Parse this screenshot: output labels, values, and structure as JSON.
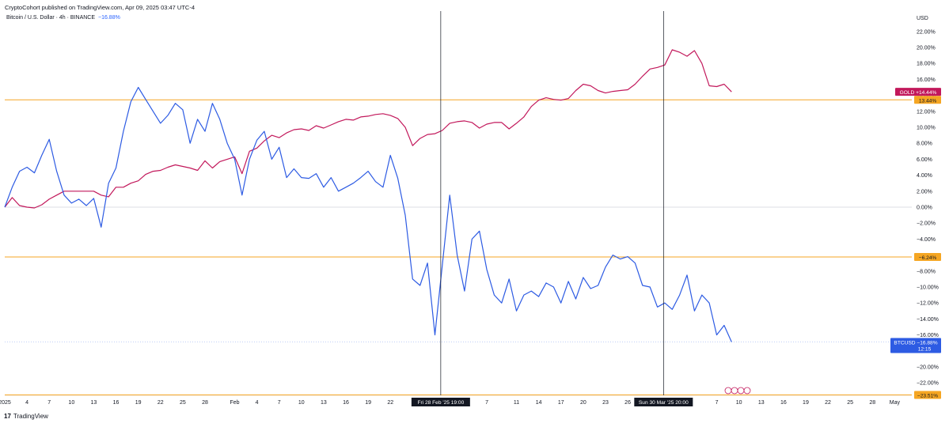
{
  "header": {
    "published": "CryptoCohort published on TradingView.com, Apr 09, 2025 03:47 UTC-4",
    "symbol": "Bitcoin / U.S. Dollar · 4h · BINANCE",
    "change": "−16.88%"
  },
  "footer": {
    "brand_mark": "17",
    "brand": "TradingView"
  },
  "colors": {
    "btc": "#2d5be3",
    "gold": "#c2185b",
    "hline": "#f5a623",
    "zero": "#d1d4dc",
    "crosshair": "#131722"
  },
  "chart_data": {
    "type": "line",
    "yunit": "USD",
    "ylim": [
      -24,
      23
    ],
    "yticks": [
      "22.00%",
      "20.00%",
      "18.00%",
      "16.00%",
      "14.00%",
      "12.00%",
      "10.00%",
      "8.00%",
      "6.00%",
      "4.00%",
      "2.00%",
      "0.00%",
      "−2.00%",
      "−4.00%",
      "−6.00%",
      "−8.00%",
      "−10.00%",
      "−12.00%",
      "−14.00%",
      "−16.00%",
      "−18.00%",
      "−20.00%",
      "−22.00%"
    ],
    "yticks_values": [
      22,
      20,
      18,
      16,
      14,
      12,
      10,
      8,
      6,
      4,
      2,
      0,
      -2,
      -4,
      -6,
      -8,
      -10,
      -12,
      -14,
      -16,
      -18,
      -20,
      -22
    ],
    "xticks": [
      "2025",
      "4",
      "7",
      "10",
      "13",
      "16",
      "19",
      "22",
      "25",
      "28",
      "Feb",
      "4",
      "7",
      "10",
      "13",
      "16",
      "19",
      "22",
      "Fri 28 Feb '25",
      "7",
      "11",
      "14",
      "17",
      "20",
      "23",
      "26",
      "Sun 30 Mar '25",
      "7",
      "10",
      "13",
      "16",
      "19",
      "22",
      "25",
      "28",
      "May"
    ],
    "xticks_days": [
      0,
      3,
      6,
      9,
      12,
      15,
      18,
      21,
      24,
      27,
      31,
      34,
      37,
      40,
      43,
      46,
      49,
      52,
      58.79,
      65,
      69,
      72,
      75,
      78,
      81,
      84,
      88.83,
      96,
      99,
      102,
      105,
      108,
      111,
      114,
      117,
      120
    ],
    "crosshairs": [
      {
        "label": "Fri 28 Feb '25  19:00",
        "day": 58.79
      },
      {
        "label": "Sun 30 Mar '25  20:00",
        "day": 88.83
      }
    ],
    "hlines": [
      {
        "value": 13.44,
        "label": "13.44%"
      },
      {
        "value": -6.24,
        "label": "−6.24%"
      },
      {
        "value": -23.51,
        "label": "−23.51%"
      }
    ],
    "series": [
      {
        "name": "GOLD",
        "badge": "GOLD  +14.44%",
        "last": 14.44,
        "x": [
          0,
          1,
          2,
          3,
          4,
          5,
          6,
          7,
          8,
          9,
          10,
          11,
          12,
          13,
          14,
          15,
          16,
          17,
          18,
          19,
          20,
          21,
          22,
          23,
          24,
          25,
          26,
          27,
          28,
          29,
          30,
          31,
          32,
          33,
          34,
          35,
          36,
          37,
          38,
          39,
          40,
          41,
          42,
          43,
          44,
          45,
          46,
          47,
          48,
          49,
          50,
          51,
          52,
          53,
          54,
          55,
          56,
          57,
          58,
          59,
          60,
          61,
          62,
          63,
          64,
          65,
          66,
          67,
          68,
          69,
          70,
          71,
          72,
          73,
          74,
          75,
          76,
          77,
          78,
          79,
          80,
          81,
          82,
          83,
          84,
          85,
          86,
          87,
          88,
          89,
          90,
          91,
          92,
          93,
          94,
          95,
          96,
          97,
          98
        ],
        "values": [
          0,
          1.2,
          0.2,
          0,
          -0.1,
          0.3,
          1,
          1.5,
          2,
          2,
          2,
          2,
          2,
          1.5,
          1.3,
          2.5,
          2.5,
          3,
          3.3,
          4.1,
          4.5,
          4.6,
          5,
          5.3,
          5.1,
          4.9,
          4.6,
          5.8,
          4.9,
          5.7,
          6,
          6.3,
          4.2,
          7,
          7.4,
          8.3,
          9,
          8.7,
          9.3,
          9.7,
          9.8,
          9.6,
          10.2,
          9.9,
          10.3,
          10.7,
          11,
          10.9,
          11.3,
          11.4,
          11.6,
          11.7,
          11.5,
          11.1,
          10,
          7.7,
          8.6,
          9.1,
          9.2,
          9.6,
          10.5,
          10.7,
          10.8,
          10.6,
          9.9,
          10.4,
          10.6,
          10.6,
          9.8,
          10.5,
          11.3,
          12.6,
          13.4,
          13.7,
          13.5,
          13.4,
          13.6,
          14.6,
          15.4,
          15.2,
          14.6,
          14.3,
          14.5,
          14.6,
          14.7,
          15.4,
          16.4,
          17.3,
          17.5,
          17.8,
          19.7,
          19.4,
          18.9,
          19.6,
          18,
          15.2,
          15.1,
          15.4,
          14.44
        ]
      },
      {
        "name": "BTCUSD",
        "badge": "BTCUSD  −16.88%",
        "timer": "12:15",
        "last": -16.88,
        "x": [
          0,
          1,
          2,
          3,
          4,
          5,
          6,
          7,
          8,
          9,
          10,
          11,
          12,
          13,
          14,
          15,
          16,
          17,
          18,
          19,
          20,
          21,
          22,
          23,
          24,
          25,
          26,
          27,
          28,
          29,
          30,
          31,
          32,
          33,
          34,
          35,
          36,
          37,
          38,
          39,
          40,
          41,
          42,
          43,
          44,
          45,
          46,
          47,
          48,
          49,
          50,
          51,
          52,
          53,
          54,
          55,
          56,
          57,
          58,
          59,
          60,
          61,
          62,
          63,
          64,
          65,
          66,
          67,
          68,
          69,
          70,
          71,
          72,
          73,
          74,
          75,
          76,
          77,
          78,
          79,
          80,
          81,
          82,
          83,
          84,
          85,
          86,
          87,
          88,
          89,
          90,
          91,
          92,
          93,
          94,
          95,
          96,
          97,
          98
        ],
        "values": [
          0,
          2.5,
          4.5,
          5,
          4.3,
          6.5,
          8.5,
          4.5,
          1.5,
          0.5,
          1,
          0.2,
          1.1,
          -2.5,
          3,
          4.9,
          9.5,
          13.2,
          15,
          13.5,
          12,
          10.5,
          11.5,
          13,
          12.2,
          8,
          11,
          9.5,
          13,
          11,
          8,
          6,
          1.5,
          6,
          8.4,
          9.5,
          6,
          7.5,
          3.7,
          4.8,
          3.7,
          3.6,
          4.2,
          2.5,
          3.7,
          2,
          2.5,
          3,
          3.7,
          4.5,
          3.2,
          2.5,
          6.5,
          3.6,
          -1,
          -9,
          -9.8,
          -7,
          -16,
          -7.3,
          1.5,
          -6,
          -10.5,
          -4,
          -3,
          -7.8,
          -11,
          -12,
          -9,
          -13,
          -11,
          -10.5,
          -11.2,
          -9.5,
          -10,
          -12,
          -9.3,
          -11.5,
          -8.8,
          -10.2,
          -9.8,
          -7.5,
          -6,
          -6.5,
          -6.2,
          -7,
          -9.8,
          -10,
          -12.5,
          -12,
          -12.8,
          -11,
          -8.5,
          -13,
          -11,
          -12,
          -16,
          -14.8,
          -16.88
        ]
      }
    ]
  }
}
